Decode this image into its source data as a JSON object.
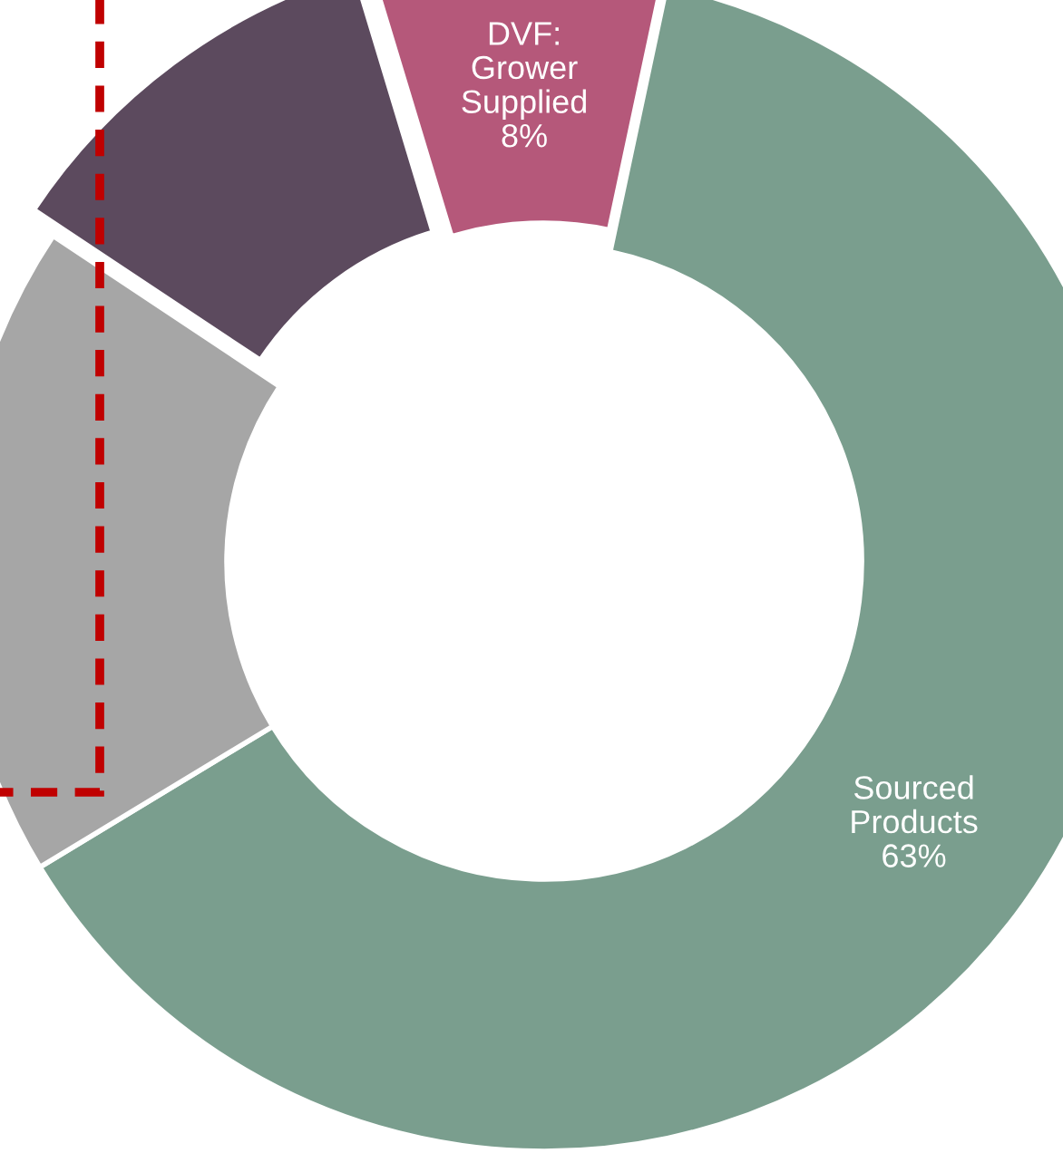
{
  "chart_data": {
    "type": "donut",
    "categories": [
      "DVF:\nGrower\nSupplied",
      "Sourced\nProducts",
      null,
      null
    ],
    "values": [
      8,
      63,
      18,
      11
    ],
    "colors": [
      "#b5587a",
      "#7a9e8e",
      "#a6a6a6",
      "#5c4a5e"
    ],
    "value_labels": [
      "8%",
      "63%",
      null,
      null
    ]
  }
}
